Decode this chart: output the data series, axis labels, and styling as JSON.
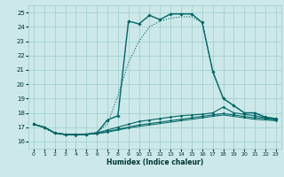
{
  "xlabel": "Humidex (Indice chaleur)",
  "bg_color": "#cce8e8",
  "grid_color": "#9ecece",
  "line_color": "#006666",
  "xlim": [
    -0.5,
    23.5
  ],
  "ylim": [
    15.5,
    25.5
  ],
  "yticks": [
    16,
    17,
    18,
    19,
    20,
    21,
    22,
    23,
    24,
    25
  ],
  "xticks": [
    0,
    1,
    2,
    3,
    4,
    5,
    6,
    7,
    8,
    9,
    10,
    11,
    12,
    13,
    14,
    15,
    16,
    17,
    18,
    19,
    20,
    21,
    22,
    23
  ],
  "curves": [
    {
      "x": [
        0,
        1,
        2,
        3,
        4,
        5,
        6,
        7,
        8,
        9,
        10,
        11,
        12,
        13,
        14,
        15,
        16,
        17,
        18,
        19,
        20,
        21,
        22,
        23
      ],
      "y": [
        17.2,
        17.0,
        16.6,
        16.5,
        16.5,
        16.5,
        16.6,
        17.5,
        17.8,
        24.4,
        24.2,
        24.8,
        24.5,
        24.9,
        24.9,
        24.9,
        24.3,
        20.9,
        19.0,
        18.5,
        18.0,
        18.0,
        17.7,
        17.6
      ],
      "marker": "D",
      "markersize": 1.8,
      "linewidth": 1.0,
      "dotted": false
    },
    {
      "x": [
        0,
        1,
        2,
        3,
        4,
        5,
        6,
        7,
        8,
        9,
        10,
        11,
        12,
        13,
        14,
        15,
        16,
        17,
        18,
        19,
        20,
        21,
        22,
        23
      ],
      "y": [
        17.2,
        16.95,
        16.55,
        16.45,
        16.45,
        16.55,
        16.65,
        17.2,
        19.2,
        21.5,
        23.0,
        24.0,
        24.4,
        24.6,
        24.7,
        24.7,
        24.3,
        20.9,
        19.0,
        18.5,
        18.0,
        18.0,
        17.7,
        17.6
      ],
      "marker": null,
      "markersize": 0,
      "linewidth": 0.8,
      "dotted": true
    },
    {
      "x": [
        0,
        1,
        2,
        3,
        4,
        5,
        6,
        7,
        8,
        9,
        10,
        11,
        12,
        13,
        14,
        15,
        16,
        17,
        18,
        19,
        20,
        21,
        22,
        23
      ],
      "y": [
        17.2,
        17.0,
        16.6,
        16.5,
        16.5,
        16.5,
        16.6,
        16.8,
        17.0,
        17.2,
        17.4,
        17.5,
        17.6,
        17.7,
        17.8,
        17.85,
        17.9,
        18.0,
        18.4,
        18.0,
        17.9,
        17.8,
        17.65,
        17.55
      ],
      "marker": "D",
      "markersize": 1.5,
      "linewidth": 0.8,
      "dotted": false
    },
    {
      "x": [
        0,
        1,
        2,
        3,
        4,
        5,
        6,
        7,
        8,
        9,
        10,
        11,
        12,
        13,
        14,
        15,
        16,
        17,
        18,
        19,
        20,
        21,
        22,
        23
      ],
      "y": [
        17.2,
        17.0,
        16.6,
        16.5,
        16.45,
        16.5,
        16.55,
        16.7,
        16.85,
        17.0,
        17.15,
        17.25,
        17.35,
        17.45,
        17.55,
        17.65,
        17.75,
        17.85,
        17.95,
        17.85,
        17.75,
        17.65,
        17.6,
        17.5
      ],
      "marker": "D",
      "markersize": 1.5,
      "linewidth": 0.8,
      "dotted": false
    },
    {
      "x": [
        0,
        1,
        2,
        3,
        4,
        5,
        6,
        7,
        8,
        9,
        10,
        11,
        12,
        13,
        14,
        15,
        16,
        17,
        18,
        19,
        20,
        21,
        22,
        23
      ],
      "y": [
        17.2,
        17.0,
        16.6,
        16.5,
        16.45,
        16.5,
        16.55,
        16.65,
        16.8,
        16.95,
        17.05,
        17.15,
        17.25,
        17.35,
        17.45,
        17.55,
        17.65,
        17.75,
        17.85,
        17.75,
        17.65,
        17.55,
        17.5,
        17.45
      ],
      "marker": null,
      "markersize": 0,
      "linewidth": 0.7,
      "dotted": false
    }
  ]
}
